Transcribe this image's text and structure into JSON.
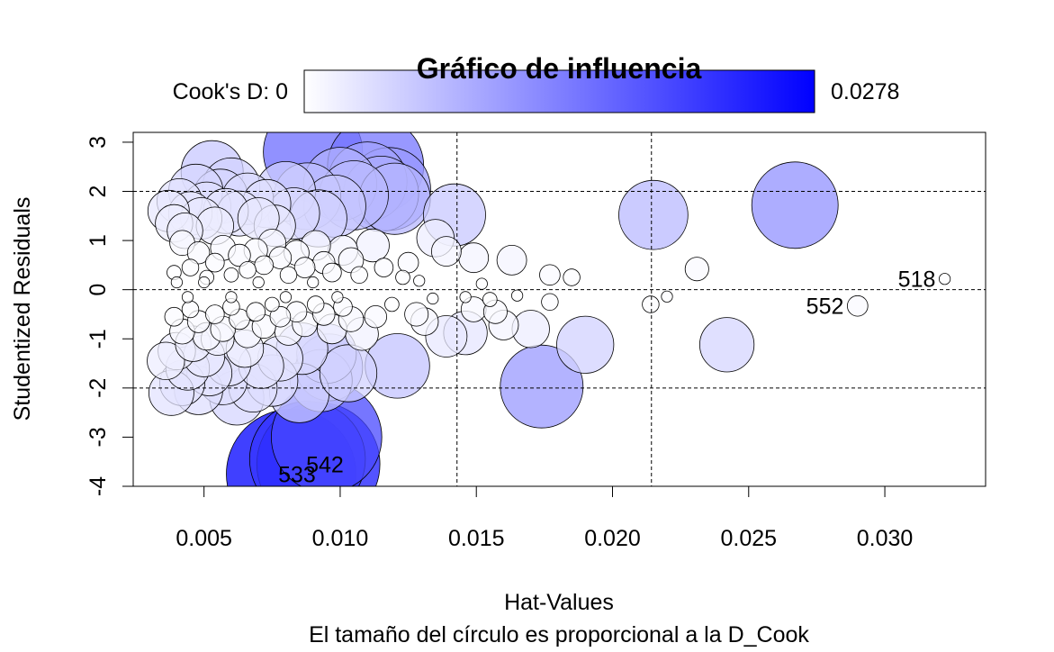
{
  "chart_data": {
    "type": "scatter",
    "title": "Gráfico de influencia",
    "xlabel": "Hat-Values",
    "sublabel": "El tamaño del círculo es proporcional a la D_Cook",
    "ylabel": "Studentized Residuals",
    "xlim": [
      0.0024,
      0.0337
    ],
    "ylim": [
      -4,
      3.2
    ],
    "x_ticks": [
      0.005,
      0.01,
      0.015,
      0.02,
      0.025,
      0.03
    ],
    "x_tick_labels": [
      "0.005",
      "0.010",
      "0.015",
      "0.020",
      "0.025",
      "0.030"
    ],
    "y_ticks": [
      -4,
      -3,
      -2,
      -1,
      0,
      1,
      2,
      3
    ],
    "y_tick_labels": [
      "-4",
      "-3",
      "-2",
      "-1",
      "0",
      "1",
      "2",
      "3"
    ],
    "reference_lines": {
      "vertical": [
        0.01429,
        0.02143
      ],
      "horizontal": [
        -2,
        0,
        2
      ]
    },
    "legend": {
      "label_min": "Cook's D: 0",
      "label_max": "0.0278",
      "color_low": "#ffffff",
      "color_high": "#0000ff",
      "cook_min": 0,
      "cook_max": 0.0278
    },
    "points": [
      {
        "x": 0.0322,
        "y": 0.22,
        "cook": 0.0001
      },
      {
        "x": 0.029,
        "y": -0.33,
        "cook": 0.0005
      },
      {
        "x": 0.0267,
        "y": 1.72,
        "cook": 0.012
      },
      {
        "x": 0.0242,
        "y": -1.12,
        "cook": 0.0045
      },
      {
        "x": 0.0231,
        "y": 0.42,
        "cook": 0.0007
      },
      {
        "x": 0.0215,
        "y": 1.52,
        "cook": 0.0075
      },
      {
        "x": 0.0214,
        "y": -0.3,
        "cook": 0.0003
      },
      {
        "x": 0.022,
        "y": -0.14,
        "cook": 0.0001
      },
      {
        "x": 0.019,
        "y": -1.12,
        "cook": 0.005
      },
      {
        "x": 0.0174,
        "y": -1.97,
        "cook": 0.011
      },
      {
        "x": 0.0185,
        "y": 0.25,
        "cook": 0.0003
      },
      {
        "x": 0.0177,
        "y": 0.3,
        "cook": 0.0005
      },
      {
        "x": 0.0177,
        "y": -0.25,
        "cook": 0.0003
      },
      {
        "x": 0.017,
        "y": -0.8,
        "cook": 0.002
      },
      {
        "x": 0.0163,
        "y": 0.6,
        "cook": 0.0012
      },
      {
        "x": 0.016,
        "y": -0.72,
        "cook": 0.0012
      },
      {
        "x": 0.0157,
        "y": -0.45,
        "cook": 0.0007
      },
      {
        "x": 0.0155,
        "y": -0.2,
        "cook": 0.0002
      },
      {
        "x": 0.0142,
        "y": 1.52,
        "cook": 0.006
      },
      {
        "x": 0.0149,
        "y": 0.65,
        "cook": 0.0012
      },
      {
        "x": 0.0149,
        "y": -0.4,
        "cook": 0.0008
      },
      {
        "x": 0.0146,
        "y": -0.88,
        "cook": 0.0028
      },
      {
        "x": 0.0139,
        "y": 0.78,
        "cook": 0.0012
      },
      {
        "x": 0.0139,
        "y": -0.95,
        "cook": 0.0025
      },
      {
        "x": 0.0135,
        "y": 1.05,
        "cook": 0.002
      },
      {
        "x": 0.0131,
        "y": -0.65,
        "cook": 0.001
      },
      {
        "x": 0.0128,
        "y": -0.5,
        "cook": 0.0007
      },
      {
        "x": 0.0125,
        "y": 0.55,
        "cook": 0.0005
      },
      {
        "x": 0.0121,
        "y": -1.55,
        "cook": 0.0065
      },
      {
        "x": 0.012,
        "y": 1.85,
        "cook": 0.008
      },
      {
        "x": 0.0118,
        "y": 2.05,
        "cook": 0.011
      },
      {
        "x": 0.0115,
        "y": 1.95,
        "cook": 0.009
      },
      {
        "x": 0.0113,
        "y": 2.52,
        "cook": 0.015
      },
      {
        "x": 0.011,
        "y": 2.2,
        "cook": 0.01
      },
      {
        "x": 0.0105,
        "y": 1.92,
        "cook": 0.0075
      },
      {
        "x": 0.0103,
        "y": -1.7,
        "cook": 0.005
      },
      {
        "x": 0.01,
        "y": 2.15,
        "cook": 0.0085
      },
      {
        "x": 0.0098,
        "y": 1.7,
        "cook": 0.006
      },
      {
        "x": 0.0096,
        "y": -1.58,
        "cook": 0.007
      },
      {
        "x": 0.0095,
        "y": -1.3,
        "cook": 0.0055
      },
      {
        "x": 0.0093,
        "y": -1.85,
        "cook": 0.006
      },
      {
        "x": 0.0092,
        "y": 1.45,
        "cook": 0.005
      },
      {
        "x": 0.009,
        "y": 2.8,
        "cook": 0.016
      },
      {
        "x": 0.0088,
        "y": 1.9,
        "cook": 0.007
      },
      {
        "x": 0.0086,
        "y": -1.2,
        "cook": 0.004
      },
      {
        "x": 0.0085,
        "y": -2.1,
        "cook": 0.0055
      },
      {
        "x": 0.0083,
        "y": 1.55,
        "cook": 0.004
      },
      {
        "x": 0.008,
        "y": 2.0,
        "cook": 0.0055
      },
      {
        "x": 0.0078,
        "y": -1.4,
        "cook": 0.003
      },
      {
        "x": 0.0076,
        "y": 1.3,
        "cook": 0.0025
      },
      {
        "x": 0.0075,
        "y": -1.85,
        "cook": 0.004
      },
      {
        "x": 0.0073,
        "y": 1.75,
        "cook": 0.0035
      },
      {
        "x": 0.0071,
        "y": -1.55,
        "cook": 0.003
      },
      {
        "x": 0.007,
        "y": 1.45,
        "cook": 0.0025
      },
      {
        "x": 0.0068,
        "y": -2.0,
        "cook": 0.0035
      },
      {
        "x": 0.0066,
        "y": 1.85,
        "cook": 0.004
      },
      {
        "x": 0.0065,
        "y": -1.2,
        "cook": 0.002
      },
      {
        "x": 0.0063,
        "y": 1.55,
        "cook": 0.003
      },
      {
        "x": 0.0062,
        "y": -2.2,
        "cook": 0.0045
      },
      {
        "x": 0.006,
        "y": 2.1,
        "cook": 0.005
      },
      {
        "x": 0.0059,
        "y": -1.5,
        "cook": 0.003
      },
      {
        "x": 0.0058,
        "y": 1.6,
        "cook": 0.003
      },
      {
        "x": 0.0057,
        "y": -1.85,
        "cook": 0.0035
      },
      {
        "x": 0.0056,
        "y": 1.9,
        "cook": 0.0045
      },
      {
        "x": 0.0055,
        "y": -1.0,
        "cook": 0.0015
      },
      {
        "x": 0.0054,
        "y": 1.3,
        "cook": 0.002
      },
      {
        "x": 0.0053,
        "y": 2.4,
        "cook": 0.006
      },
      {
        "x": 0.0052,
        "y": -1.7,
        "cook": 0.003
      },
      {
        "x": 0.0051,
        "y": 1.7,
        "cook": 0.0035
      },
      {
        "x": 0.005,
        "y": -1.35,
        "cook": 0.0025
      },
      {
        "x": 0.0049,
        "y": 1.45,
        "cook": 0.0025
      },
      {
        "x": 0.0048,
        "y": -2.05,
        "cook": 0.0035
      },
      {
        "x": 0.0047,
        "y": 2.0,
        "cook": 0.0045
      },
      {
        "x": 0.0046,
        "y": -1.1,
        "cook": 0.0018
      },
      {
        "x": 0.0045,
        "y": 1.55,
        "cook": 0.0028
      },
      {
        "x": 0.0044,
        "y": -1.6,
        "cook": 0.0028
      },
      {
        "x": 0.0043,
        "y": 1.2,
        "cook": 0.0018
      },
      {
        "x": 0.0042,
        "y": -1.9,
        "cook": 0.003
      },
      {
        "x": 0.0041,
        "y": 1.8,
        "cook": 0.003
      },
      {
        "x": 0.004,
        "y": -1.25,
        "cook": 0.002
      },
      {
        "x": 0.0039,
        "y": 1.35,
        "cook": 0.002
      },
      {
        "x": 0.0038,
        "y": -2.1,
        "cook": 0.003
      },
      {
        "x": 0.0037,
        "y": 1.6,
        "cook": 0.0025
      },
      {
        "x": 0.0036,
        "y": -1.45,
        "cook": 0.002
      },
      {
        "x": 0.0088,
        "y": -3.45,
        "cook": 0.022
      },
      {
        "x": 0.0095,
        "y": -3.0,
        "cook": 0.02
      },
      {
        "x": 0.0082,
        "y": -3.75,
        "cook": 0.0278
      },
      {
        "x": 0.0092,
        "y": -3.55,
        "cook": 0.025
      },
      {
        "x": 0.0104,
        "y": 0.6,
        "cook": 0.0008
      },
      {
        "x": 0.0101,
        "y": 0.8,
        "cook": 0.0012
      },
      {
        "x": 0.0097,
        "y": 0.35,
        "cook": 0.0004
      },
      {
        "x": 0.0094,
        "y": 0.55,
        "cook": 0.0006
      },
      {
        "x": 0.0091,
        "y": 0.9,
        "cook": 0.0012
      },
      {
        "x": 0.0087,
        "y": 0.45,
        "cook": 0.0005
      },
      {
        "x": 0.0084,
        "y": 0.75,
        "cook": 0.0008
      },
      {
        "x": 0.0081,
        "y": 0.3,
        "cook": 0.0003
      },
      {
        "x": 0.0078,
        "y": 0.65,
        "cook": 0.0006
      },
      {
        "x": 0.0075,
        "y": 0.95,
        "cook": 0.001
      },
      {
        "x": 0.0072,
        "y": 0.5,
        "cook": 0.0004
      },
      {
        "x": 0.0069,
        "y": 0.8,
        "cook": 0.0007
      },
      {
        "x": 0.0066,
        "y": 0.4,
        "cook": 0.0003
      },
      {
        "x": 0.0063,
        "y": 0.7,
        "cook": 0.0006
      },
      {
        "x": 0.006,
        "y": 0.3,
        "cook": 0.0002
      },
      {
        "x": 0.0057,
        "y": 0.85,
        "cook": 0.0008
      },
      {
        "x": 0.0054,
        "y": 0.55,
        "cook": 0.0004
      },
      {
        "x": 0.0051,
        "y": 0.25,
        "cook": 0.0002
      },
      {
        "x": 0.0048,
        "y": 0.75,
        "cook": 0.0006
      },
      {
        "x": 0.0045,
        "y": 0.45,
        "cook": 0.0003
      },
      {
        "x": 0.0042,
        "y": 0.95,
        "cook": 0.0008
      },
      {
        "x": 0.0039,
        "y": 0.35,
        "cook": 0.0002
      },
      {
        "x": 0.0104,
        "y": -0.6,
        "cook": 0.0008
      },
      {
        "x": 0.0101,
        "y": -0.35,
        "cook": 0.0004
      },
      {
        "x": 0.0097,
        "y": -0.8,
        "cook": 0.0012
      },
      {
        "x": 0.0094,
        "y": -0.5,
        "cook": 0.0006
      },
      {
        "x": 0.0091,
        "y": -0.3,
        "cook": 0.0003
      },
      {
        "x": 0.0087,
        "y": -0.7,
        "cook": 0.0008
      },
      {
        "x": 0.0084,
        "y": -0.45,
        "cook": 0.0005
      },
      {
        "x": 0.0081,
        "y": -0.85,
        "cook": 0.001
      },
      {
        "x": 0.0078,
        "y": -0.55,
        "cook": 0.0005
      },
      {
        "x": 0.0075,
        "y": -0.3,
        "cook": 0.0002
      },
      {
        "x": 0.0072,
        "y": -0.75,
        "cook": 0.0007
      },
      {
        "x": 0.0069,
        "y": -0.45,
        "cook": 0.0004
      },
      {
        "x": 0.0066,
        "y": -0.9,
        "cook": 0.001
      },
      {
        "x": 0.0063,
        "y": -0.6,
        "cook": 0.0005
      },
      {
        "x": 0.006,
        "y": -0.35,
        "cook": 0.0003
      },
      {
        "x": 0.0057,
        "y": -0.8,
        "cook": 0.0008
      },
      {
        "x": 0.0054,
        "y": -0.5,
        "cook": 0.0004
      },
      {
        "x": 0.0051,
        "y": -0.95,
        "cook": 0.001
      },
      {
        "x": 0.0048,
        "y": -0.65,
        "cook": 0.0006
      },
      {
        "x": 0.0045,
        "y": -0.4,
        "cook": 0.0003
      },
      {
        "x": 0.0042,
        "y": -0.85,
        "cook": 0.0008
      },
      {
        "x": 0.0039,
        "y": -0.55,
        "cook": 0.0004
      },
      {
        "x": 0.0112,
        "y": 0.9,
        "cook": 0.0015
      },
      {
        "x": 0.0108,
        "y": -0.9,
        "cook": 0.0015
      },
      {
        "x": 0.0116,
        "y": 0.45,
        "cook": 0.0004
      },
      {
        "x": 0.0119,
        "y": -0.3,
        "cook": 0.0002
      },
      {
        "x": 0.0123,
        "y": 0.25,
        "cook": 0.0002
      },
      {
        "x": 0.0113,
        "y": -0.55,
        "cook": 0.0006
      },
      {
        "x": 0.0107,
        "y": 0.3,
        "cook": 0.0003
      },
      {
        "x": 0.0099,
        "y": -0.15,
        "cook": 0.0001
      },
      {
        "x": 0.009,
        "y": 0.15,
        "cook": 0.0001
      },
      {
        "x": 0.008,
        "y": -0.15,
        "cook": 0.0001
      },
      {
        "x": 0.007,
        "y": 0.15,
        "cook": 0.0001
      },
      {
        "x": 0.006,
        "y": -0.15,
        "cook": 0.0001
      },
      {
        "x": 0.005,
        "y": 0.15,
        "cook": 0.0001
      },
      {
        "x": 0.0044,
        "y": -0.15,
        "cook": 0.0001
      },
      {
        "x": 0.004,
        "y": 0.15,
        "cook": 0.0001
      },
      {
        "x": 0.0134,
        "y": -0.18,
        "cook": 0.0001
      },
      {
        "x": 0.0129,
        "y": 0.18,
        "cook": 0.0001
      },
      {
        "x": 0.0146,
        "y": -0.15,
        "cook": 0.0001
      },
      {
        "x": 0.0152,
        "y": 0.12,
        "cook": 0.0001
      },
      {
        "x": 0.0165,
        "y": -0.12,
        "cook": 0.0001
      }
    ],
    "point_labels": [
      {
        "text": "518",
        "x": 0.0322,
        "y": 0.22,
        "side": "left"
      },
      {
        "text": "552",
        "x": 0.029,
        "y": -0.33,
        "side": "left"
      },
      {
        "text": "542",
        "x": 0.0092,
        "y": -3.55,
        "side": "right"
      },
      {
        "text": "533",
        "x": 0.0082,
        "y": -3.75,
        "side": "right"
      }
    ]
  }
}
